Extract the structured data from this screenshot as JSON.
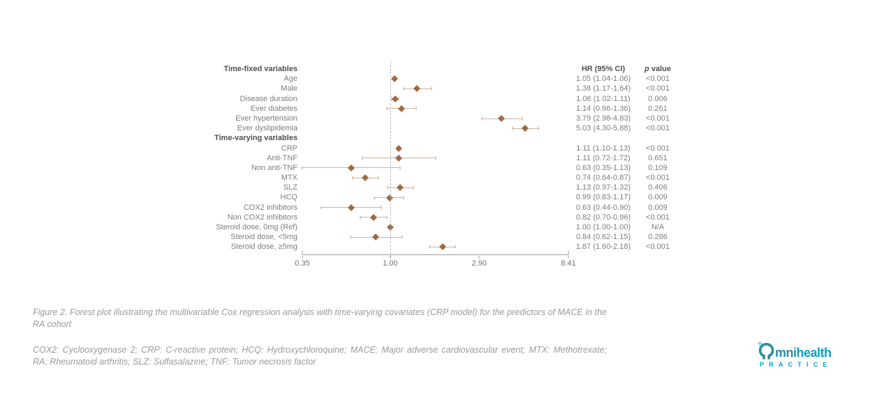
{
  "colors": {
    "diamond": "#a0693f",
    "whisker": "#cfb29a",
    "teal_bright": "#00a5c4",
    "teal_muted": "#2e8ca1",
    "teal_light": "#93d4e0"
  },
  "chart_data": {
    "type": "forest",
    "hr_header": "HR (95% CI)",
    "p_header": {
      "italic": "p",
      "rest": " value"
    },
    "x_axis": {
      "scale": "log",
      "min": 0.35,
      "max": 8.41,
      "ticks": [
        "0.35",
        "1.00",
        "2.90",
        "8.41"
      ],
      "tick_values": [
        0.35,
        1.0,
        2.9,
        8.41
      ],
      "ref_line": 1.0
    },
    "rows": [
      {
        "label": "Time-fixed variables",
        "section": true,
        "col_headers": true
      },
      {
        "label": "Age",
        "hr": 1.05,
        "ci": [
          1.04,
          1.06
        ],
        "hr_text": "1.05 (1.04-1.06)",
        "p": "<0.001"
      },
      {
        "label": "Male",
        "hr": 1.38,
        "ci": [
          1.17,
          1.64
        ],
        "hr_text": "1.38 (1.17-1.64)",
        "p": "<0.001"
      },
      {
        "label": "Disease duration",
        "hr": 1.06,
        "ci": [
          1.02,
          1.11
        ],
        "hr_text": "1.06 (1.02-1.11)",
        "p": "0.006"
      },
      {
        "label": "Ever diabetes",
        "hr": 1.14,
        "ci": [
          0.96,
          1.36
        ],
        "hr_text": "1.14 (0.96-1.36)",
        "p": "0.261"
      },
      {
        "label": "Ever hypertension",
        "hr": 3.79,
        "ci": [
          2.98,
          4.83
        ],
        "hr_text": "3.79 (2.98-4.83)",
        "p": "<0.001"
      },
      {
        "label": "Ever dyslipidemia",
        "hr": 5.03,
        "ci": [
          4.3,
          5.88
        ],
        "hr_text": "5.03 (4.30-5.88)",
        "p": "<0.001"
      },
      {
        "label": "Time-varying variables",
        "section": true
      },
      {
        "label": "CRP",
        "hr": 1.11,
        "ci": [
          1.1,
          1.13
        ],
        "hr_text": "1.11 (1.10-1.13)",
        "p": "<0.001"
      },
      {
        "label": "Anti-TNF",
        "hr": 1.11,
        "ci": [
          0.72,
          1.72
        ],
        "hr_text": "1.11 (0.72-1.72)",
        "p": "0.651"
      },
      {
        "label": "Non anti-TNF",
        "hr": 0.63,
        "ci": [
          0.35,
          1.13
        ],
        "hr_text": "0.63 (0.35-1.13)",
        "p": "0.109"
      },
      {
        "label": "MTX",
        "hr": 0.74,
        "ci": [
          0.64,
          0.87
        ],
        "hr_text": "0.74 (0.64-0.87)",
        "p": "<0.001"
      },
      {
        "label": "SLZ",
        "hr": 1.13,
        "ci": [
          0.97,
          1.32
        ],
        "hr_text": "1.13 (0.97-1.32)",
        "p": "0.406"
      },
      {
        "label": "HCQ",
        "hr": 0.99,
        "ci": [
          0.83,
          1.17
        ],
        "hr_text": "0.99 (0.83-1.17)",
        "p": "0.009"
      },
      {
        "label": "COX2 inhibitors",
        "hr": 0.63,
        "ci": [
          0.44,
          0.9
        ],
        "hr_text": "0.63 (0.44-0.90)",
        "p": "0.009"
      },
      {
        "label": "Non COX2 inhibitors",
        "hr": 0.82,
        "ci": [
          0.7,
          0.96
        ],
        "hr_text": "0.82 (0.70-0.96)",
        "p": "<0.001"
      },
      {
        "label": "Steroid dose, 0mg (Ref)",
        "hr": 1.0,
        "ci": [
          1.0,
          1.0
        ],
        "hr_text": "1.00 (1.00-1.00)",
        "p": "N/A"
      },
      {
        "label": "Steroid dose, <5mg",
        "hr": 0.84,
        "ci": [
          0.62,
          1.15
        ],
        "hr_text": "0.84 (0.62-1.15)",
        "p": "0.286"
      },
      {
        "label": "Steroid dose, ≥5mg",
        "hr": 1.87,
        "ci": [
          1.6,
          2.18
        ],
        "hr_text": "1.87 (1.60-2.18)",
        "p": "<0.001"
      }
    ]
  },
  "figure": {
    "caption": "Figure 2. Forest plot illustrating the multivariable Cox regression analysis with time-varying covariates (CRP model) for the predictors of MACE in the RA cohort",
    "abbreviations": "COX2: Cyclooxygenase 2; CRP: C-reactive protein; HCQ: Hydroxychloroquine; MACE: Major adverse cardiovascular event; MTX: Methotrexate; RA: Rheumatoid arthritis; SLZ: Sulfasalazine; TNF: Tumor necrosis factor"
  },
  "logo": {
    "mni": "mni",
    "health": "health",
    "practice": "PRACTICE"
  }
}
